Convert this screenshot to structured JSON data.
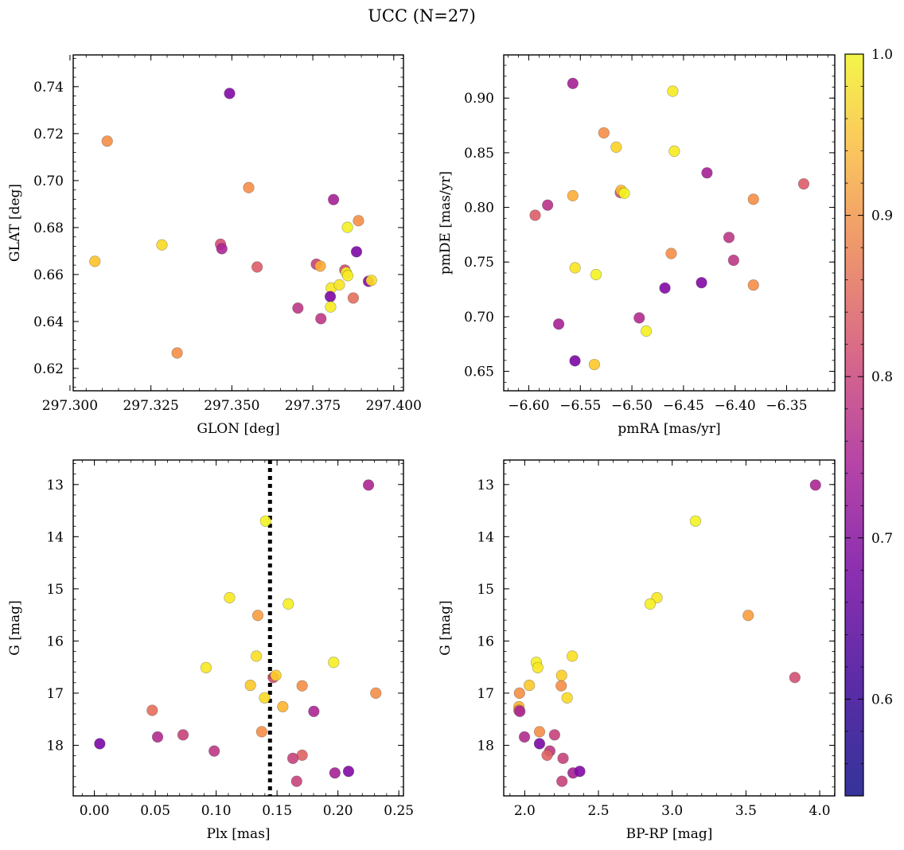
{
  "figure": {
    "title": "UCC (N=27)"
  },
  "colorbar": {
    "min": 0.54,
    "max": 1.0,
    "ticks": [
      "0.6",
      "0.7",
      "0.8",
      "0.9",
      "1.0"
    ],
    "tick_values": [
      0.6,
      0.7,
      0.8,
      0.9,
      1.0
    ],
    "colormap": "plasma"
  },
  "chart_data": [
    {
      "type": "scatter",
      "id": "glon-glat",
      "title": "",
      "xlabel": "GLON [deg]",
      "ylabel": "GLAT [deg]",
      "xlim": [
        297.301,
        297.403
      ],
      "ylim": [
        0.6105,
        0.7535
      ],
      "x_ticks": [
        297.3,
        297.325,
        297.35,
        297.375,
        297.4
      ],
      "x_tick_labels": [
        "297.300",
        "297.325",
        "297.350",
        "297.375",
        "297.400"
      ],
      "y_ticks": [
        0.62,
        0.64,
        0.66,
        0.68,
        0.7,
        0.72,
        0.74
      ],
      "y_tick_labels": [
        "0.62",
        "0.64",
        "0.66",
        "0.68",
        "0.70",
        "0.72",
        "0.74"
      ],
      "y_inverted": false,
      "points": [
        {
          "x": 297.3493,
          "y": 0.7371,
          "c": 0.57
        },
        {
          "x": 297.3115,
          "y": 0.7168,
          "c": 0.8
        },
        {
          "x": 297.3552,
          "y": 0.697,
          "c": 0.8
        },
        {
          "x": 297.3814,
          "y": 0.6919,
          "c": 0.62
        },
        {
          "x": 297.3891,
          "y": 0.6829,
          "c": 0.8
        },
        {
          "x": 297.3857,
          "y": 0.6801,
          "c": 0.97
        },
        {
          "x": 297.3284,
          "y": 0.6726,
          "c": 0.91
        },
        {
          "x": 297.3077,
          "y": 0.6656,
          "c": 0.87
        },
        {
          "x": 297.3465,
          "y": 0.6729,
          "c": 0.7
        },
        {
          "x": 297.3469,
          "y": 0.671,
          "c": 0.63
        },
        {
          "x": 297.3578,
          "y": 0.6632,
          "c": 0.72
        },
        {
          "x": 297.3761,
          "y": 0.6644,
          "c": 0.68
        },
        {
          "x": 297.3773,
          "y": 0.6636,
          "c": 0.84
        },
        {
          "x": 297.3885,
          "y": 0.6697,
          "c": 0.56
        },
        {
          "x": 297.3849,
          "y": 0.6619,
          "c": 0.7
        },
        {
          "x": 297.3853,
          "y": 0.6608,
          "c": 0.97
        },
        {
          "x": 297.3858,
          "y": 0.6595,
          "c": 0.95
        },
        {
          "x": 297.3922,
          "y": 0.6571,
          "c": 0.58
        },
        {
          "x": 297.3931,
          "y": 0.6575,
          "c": 0.92
        },
        {
          "x": 297.3807,
          "y": 0.6543,
          "c": 0.94
        },
        {
          "x": 297.3832,
          "y": 0.6556,
          "c": 0.93
        },
        {
          "x": 297.3804,
          "y": 0.6506,
          "c": 0.56
        },
        {
          "x": 297.3805,
          "y": 0.6462,
          "c": 0.95
        },
        {
          "x": 297.3875,
          "y": 0.65,
          "c": 0.75
        },
        {
          "x": 297.3704,
          "y": 0.6457,
          "c": 0.66
        },
        {
          "x": 297.3775,
          "y": 0.6412,
          "c": 0.66
        },
        {
          "x": 297.3331,
          "y": 0.6266,
          "c": 0.8
        }
      ]
    },
    {
      "type": "scatter",
      "id": "pmra-pmde",
      "title": "",
      "xlabel": "pmRA [mas/yr]",
      "ylabel": "pmDE [mas/yr]",
      "xlim": [
        -6.6243,
        -6.3033
      ],
      "ylim": [
        0.6322,
        0.9395
      ],
      "x_ticks": [
        -6.6,
        -6.55,
        -6.5,
        -6.45,
        -6.4,
        -6.35
      ],
      "x_tick_labels": [
        "−6.60",
        "−6.55",
        "−6.50",
        "−6.45",
        "−6.40",
        "−6.35"
      ],
      "y_ticks": [
        0.65,
        0.7,
        0.75,
        0.8,
        0.85,
        0.9
      ],
      "y_tick_labels": [
        "0.65",
        "0.70",
        "0.75",
        "0.80",
        "0.85",
        "0.90"
      ],
      "y_inverted": false,
      "points": [
        {
          "x": -6.5573,
          "y": 0.9134,
          "c": 0.62
        },
        {
          "x": -6.4604,
          "y": 0.9063,
          "c": 0.95
        },
        {
          "x": -6.5272,
          "y": 0.8682,
          "c": 0.8
        },
        {
          "x": -6.5152,
          "y": 0.8551,
          "c": 0.9
        },
        {
          "x": -6.4589,
          "y": 0.8514,
          "c": 0.95
        },
        {
          "x": -6.4272,
          "y": 0.8316,
          "c": 0.62
        },
        {
          "x": -6.3334,
          "y": 0.8215,
          "c": 0.72
        },
        {
          "x": -6.5112,
          "y": 0.8136,
          "c": 0.7
        },
        {
          "x": -6.5104,
          "y": 0.8155,
          "c": 0.86
        },
        {
          "x": -6.5074,
          "y": 0.8129,
          "c": 0.98
        },
        {
          "x": -6.5573,
          "y": 0.8107,
          "c": 0.84
        },
        {
          "x": -6.3822,
          "y": 0.8074,
          "c": 0.8
        },
        {
          "x": -6.5817,
          "y": 0.8021,
          "c": 0.65
        },
        {
          "x": -6.5938,
          "y": 0.7928,
          "c": 0.72
        },
        {
          "x": -6.4059,
          "y": 0.7725,
          "c": 0.66
        },
        {
          "x": -6.4619,
          "y": 0.7578,
          "c": 0.8
        },
        {
          "x": -6.4014,
          "y": 0.7516,
          "c": 0.66
        },
        {
          "x": -6.5551,
          "y": 0.7447,
          "c": 0.93
        },
        {
          "x": -6.5348,
          "y": 0.7385,
          "c": 0.98
        },
        {
          "x": -6.4325,
          "y": 0.7311,
          "c": 0.57
        },
        {
          "x": -6.3822,
          "y": 0.7289,
          "c": 0.8
        },
        {
          "x": -6.468,
          "y": 0.7262,
          "c": 0.57
        },
        {
          "x": -6.571,
          "y": 0.6932,
          "c": 0.62
        },
        {
          "x": -6.4929,
          "y": 0.6989,
          "c": 0.64
        },
        {
          "x": -6.4861,
          "y": 0.6868,
          "c": 0.97
        },
        {
          "x": -6.5552,
          "y": 0.6596,
          "c": 0.56
        },
        {
          "x": -6.5364,
          "y": 0.6562,
          "c": 0.88
        }
      ]
    },
    {
      "type": "scatter",
      "id": "plx-g",
      "title": "",
      "xlabel": "Plx [mas]",
      "ylabel": "G [mag]",
      "xlim": [
        -0.0174,
        0.2538
      ],
      "ylim": [
        12.53,
        18.97
      ],
      "x_ticks": [
        0.0,
        0.05,
        0.1,
        0.15,
        0.2,
        0.25
      ],
      "x_tick_labels": [
        "0.00",
        "0.05",
        "0.10",
        "0.15",
        "0.20",
        "0.25"
      ],
      "y_ticks": [
        13,
        14,
        15,
        16,
        17,
        18
      ],
      "y_tick_labels": [
        "13",
        "14",
        "15",
        "16",
        "17",
        "18"
      ],
      "y_inverted": true,
      "vline": 0.1442,
      "points": [
        {
          "x": 0.2251,
          "y": 13.01,
          "c": 0.63
        },
        {
          "x": 0.1406,
          "y": 13.7,
          "c": 0.98
        },
        {
          "x": 0.111,
          "y": 15.17,
          "c": 0.94
        },
        {
          "x": 0.1593,
          "y": 15.29,
          "c": 0.96
        },
        {
          "x": 0.1342,
          "y": 15.51,
          "c": 0.82
        },
        {
          "x": 0.133,
          "y": 16.29,
          "c": 0.92
        },
        {
          "x": 0.1965,
          "y": 16.41,
          "c": 0.96
        },
        {
          "x": 0.0917,
          "y": 16.51,
          "c": 0.94
        },
        {
          "x": 0.1469,
          "y": 16.7,
          "c": 0.7
        },
        {
          "x": 0.149,
          "y": 16.66,
          "c": 0.89
        },
        {
          "x": 0.1281,
          "y": 16.85,
          "c": 0.88
        },
        {
          "x": 0.1706,
          "y": 16.86,
          "c": 0.8
        },
        {
          "x": 0.2311,
          "y": 17.0,
          "c": 0.8
        },
        {
          "x": 0.1398,
          "y": 17.09,
          "c": 0.91
        },
        {
          "x": 0.1547,
          "y": 17.26,
          "c": 0.85
        },
        {
          "x": 0.0475,
          "y": 17.33,
          "c": 0.75
        },
        {
          "x": 0.1802,
          "y": 17.35,
          "c": 0.63
        },
        {
          "x": 0.1374,
          "y": 17.74,
          "c": 0.8
        },
        {
          "x": 0.0728,
          "y": 17.8,
          "c": 0.68
        },
        {
          "x": 0.0519,
          "y": 17.84,
          "c": 0.64
        },
        {
          "x": 0.0044,
          "y": 17.97,
          "c": 0.56
        },
        {
          "x": 0.0984,
          "y": 18.11,
          "c": 0.66
        },
        {
          "x": 0.1706,
          "y": 18.19,
          "c": 0.73
        },
        {
          "x": 0.163,
          "y": 18.25,
          "c": 0.68
        },
        {
          "x": 0.1975,
          "y": 18.53,
          "c": 0.62
        },
        {
          "x": 0.2087,
          "y": 18.5,
          "c": 0.57
        },
        {
          "x": 0.1661,
          "y": 18.69,
          "c": 0.68
        }
      ]
    },
    {
      "type": "scatter",
      "id": "bprp-g",
      "title": "",
      "xlabel": "BP-RP [mag]",
      "ylabel": "G [mag]",
      "xlim": [
        1.8578,
        4.1022
      ],
      "ylim": [
        12.53,
        18.97
      ],
      "x_ticks": [
        2.0,
        2.5,
        3.0,
        3.5,
        4.0
      ],
      "x_tick_labels": [
        "2.0",
        "2.5",
        "3.0",
        "3.5",
        "4.0"
      ],
      "y_ticks": [
        13,
        14,
        15,
        16,
        17,
        18
      ],
      "y_tick_labels": [
        "13",
        "14",
        "15",
        "16",
        "17",
        "18"
      ],
      "y_inverted": true,
      "points": [
        {
          "x": 3.9714,
          "y": 13.01,
          "c": 0.63
        },
        {
          "x": 3.1576,
          "y": 13.7,
          "c": 0.98
        },
        {
          "x": 2.8965,
          "y": 15.17,
          "c": 0.94
        },
        {
          "x": 2.8501,
          "y": 15.29,
          "c": 0.96
        },
        {
          "x": 3.5153,
          "y": 15.51,
          "c": 0.82
        },
        {
          "x": 2.3226,
          "y": 16.29,
          "c": 0.92
        },
        {
          "x": 2.0785,
          "y": 16.41,
          "c": 0.96
        },
        {
          "x": 2.0885,
          "y": 16.51,
          "c": 0.94
        },
        {
          "x": 3.8316,
          "y": 16.7,
          "c": 0.7
        },
        {
          "x": 2.2502,
          "y": 16.66,
          "c": 0.89
        },
        {
          "x": 2.0312,
          "y": 16.85,
          "c": 0.88
        },
        {
          "x": 2.2474,
          "y": 16.86,
          "c": 0.8
        },
        {
          "x": 1.9647,
          "y": 17.0,
          "c": 0.8
        },
        {
          "x": 2.2876,
          "y": 17.09,
          "c": 0.91
        },
        {
          "x": 1.961,
          "y": 17.26,
          "c": 0.85
        },
        {
          "x": 1.961,
          "y": 17.33,
          "c": 0.75
        },
        {
          "x": 1.967,
          "y": 17.35,
          "c": 0.63
        },
        {
          "x": 2.1005,
          "y": 17.74,
          "c": 0.8
        },
        {
          "x": 2.2024,
          "y": 17.8,
          "c": 0.68
        },
        {
          "x": 1.9984,
          "y": 17.84,
          "c": 0.64
        },
        {
          "x": 2.1005,
          "y": 17.97,
          "c": 0.56
        },
        {
          "x": 2.1707,
          "y": 18.11,
          "c": 0.66
        },
        {
          "x": 2.152,
          "y": 18.19,
          "c": 0.73
        },
        {
          "x": 2.26,
          "y": 18.25,
          "c": 0.68
        },
        {
          "x": 2.3279,
          "y": 18.53,
          "c": 0.62
        },
        {
          "x": 2.3734,
          "y": 18.5,
          "c": 0.57
        },
        {
          "x": 2.2528,
          "y": 18.69,
          "c": 0.68
        }
      ]
    }
  ]
}
